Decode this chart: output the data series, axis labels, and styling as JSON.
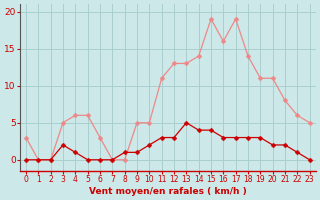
{
  "hours": [
    0,
    1,
    2,
    3,
    4,
    5,
    6,
    7,
    8,
    9,
    10,
    11,
    12,
    13,
    14,
    15,
    16,
    17,
    18,
    19,
    20,
    21,
    22,
    23
  ],
  "wind_avg": [
    0,
    0,
    0,
    2,
    1,
    0,
    0,
    0,
    1,
    1,
    2,
    3,
    3,
    5,
    4,
    4,
    3,
    3,
    3,
    3,
    2,
    2,
    1,
    0
  ],
  "wind_gust": [
    3,
    0,
    0,
    5,
    6,
    6,
    3,
    0,
    0,
    5,
    5,
    11,
    13,
    13,
    14,
    19,
    16,
    19,
    14,
    11,
    11,
    8,
    6,
    5
  ],
  "bg_color": "#cce8e8",
  "grid_color": "#aacece",
  "line_avg_color": "#cc0000",
  "line_gust_color": "#ee8888",
  "marker_size": 2.5,
  "xlabel": "Vent moyen/en rafales ( km/h )",
  "ylabel_ticks": [
    0,
    5,
    10,
    15,
    20
  ],
  "ylim": [
    -1.5,
    21
  ],
  "xlim": [
    -0.5,
    23.5
  ]
}
